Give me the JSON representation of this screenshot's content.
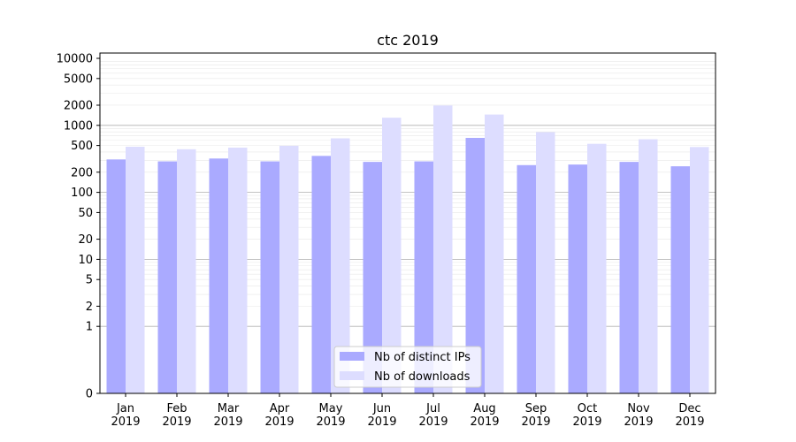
{
  "chart_data": {
    "type": "bar",
    "title": "ctc 2019",
    "categories": [
      "Jan\n2019",
      "Feb\n2019",
      "Mar\n2019",
      "Apr\n2019",
      "May\n2019",
      "Jun\n2019",
      "Jul\n2019",
      "Aug\n2019",
      "Sep\n2019",
      "Oct\n2019",
      "Nov\n2019",
      "Dec\n2019"
    ],
    "series": [
      {
        "name": "Nb of distinct IPs",
        "color": "#aaaaff",
        "values": [
          310,
          290,
          320,
          290,
          350,
          285,
          290,
          650,
          255,
          260,
          285,
          245
        ]
      },
      {
        "name": "Nb of downloads",
        "color": "#ddddff",
        "values": [
          480,
          440,
          465,
          495,
          640,
          1300,
          1980,
          1450,
          790,
          530,
          620,
          475
        ]
      }
    ],
    "yscale": "symlog",
    "yticks": [
      0,
      1,
      2,
      5,
      10,
      20,
      50,
      100,
      200,
      500,
      1000,
      2000,
      5000,
      10000
    ],
    "ytick_labels": [
      "0",
      "1",
      "2",
      "5",
      "10",
      "20",
      "50",
      "100",
      "200",
      "500",
      "1000",
      "2000",
      "5000",
      "10000"
    ],
    "ylim": [
      0,
      12000
    ],
    "legend": "lower-center",
    "grid": true,
    "xlabel": "",
    "ylabel": ""
  }
}
